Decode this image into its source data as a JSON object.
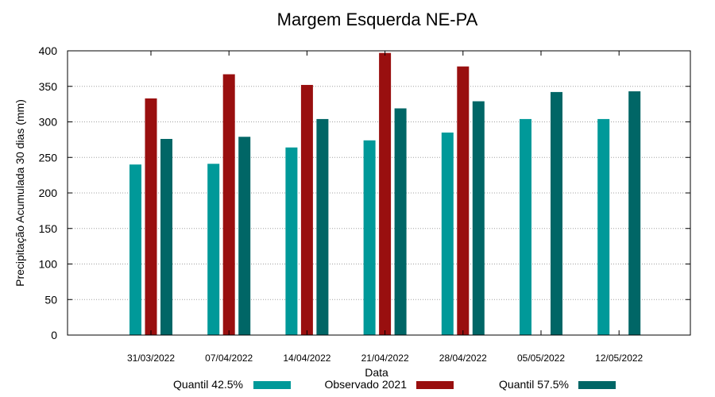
{
  "chart_data": {
    "type": "bar",
    "title": "Margem Esquerda NE-PA",
    "xlabel": "Data",
    "ylabel": "Precipitação Acumulada 30 dias (mm)",
    "ylim": [
      0,
      400
    ],
    "yticks": [
      0,
      50,
      100,
      150,
      200,
      250,
      300,
      350,
      400
    ],
    "grid": true,
    "legend_position": "bottom",
    "categories": [
      "31/03/2022",
      "07/04/2022",
      "14/04/2022",
      "21/04/2022",
      "28/04/2022",
      "05/05/2022",
      "12/05/2022"
    ],
    "series": [
      {
        "name": "Quantil 42.5%",
        "color": "#009999",
        "values": [
          240,
          241,
          264,
          274,
          285,
          304,
          304
        ]
      },
      {
        "name": "Observado 2021",
        "color": "#990f0f",
        "values": [
          333,
          367,
          352,
          397,
          378,
          null,
          null
        ]
      },
      {
        "name": "Quantil 57.5%",
        "color": "#006666",
        "values": [
          276,
          279,
          304,
          319,
          329,
          342,
          343
        ]
      }
    ]
  }
}
